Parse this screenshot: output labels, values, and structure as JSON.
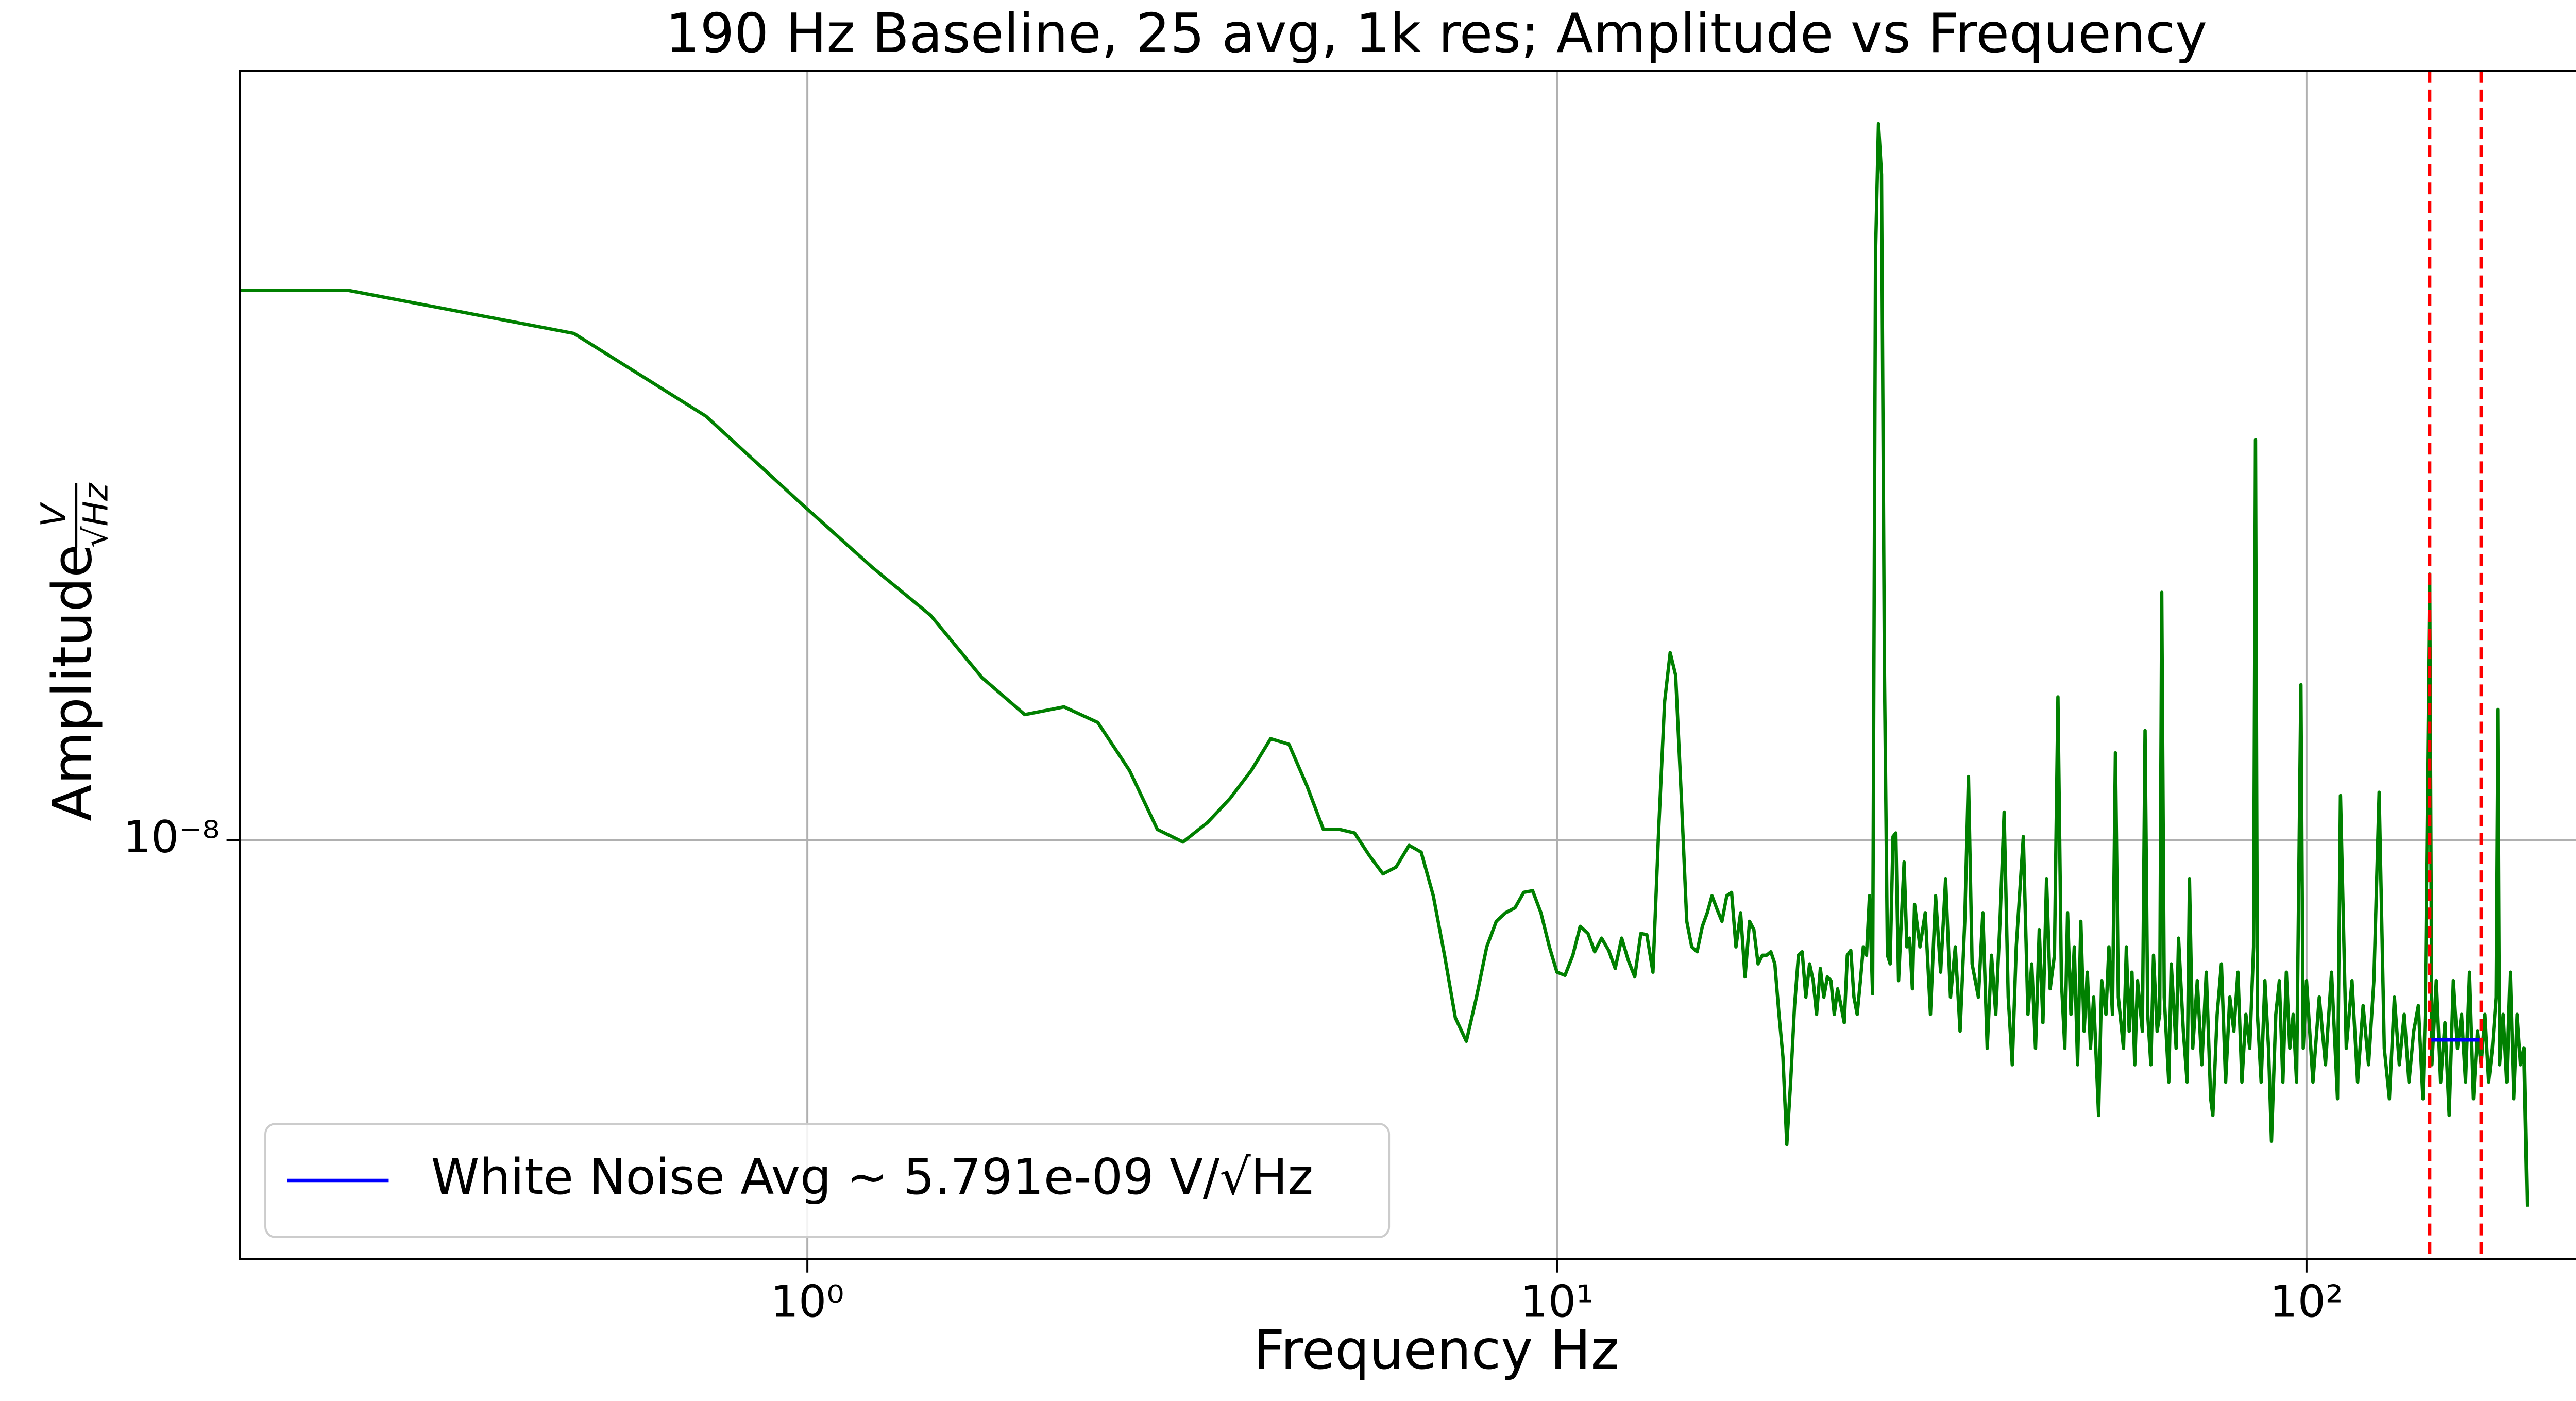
{
  "chart_data": {
    "type": "line",
    "title": "190 Hz Baseline, 25 avg, 1k res; Amplitude vs Frequency",
    "xlabel": "Frequency Hz",
    "ylabel": "Amplitude",
    "ylabel_fraction": {
      "numerator": "V",
      "denominator": "√Hz"
    },
    "xscale": "log",
    "yscale": "log",
    "grid": true,
    "legend_position": "lower left",
    "xlim": [
      0.175,
      271
    ],
    "ylim": [
      3.18e-09,
      8.2e-08
    ],
    "xticks": [
      {
        "value": 1,
        "label": "10⁰"
      },
      {
        "value": 10,
        "label": "10¹"
      },
      {
        "value": 100,
        "label": "10²"
      }
    ],
    "yticks": [
      {
        "value": 1e-08,
        "label": "10⁻⁸"
      }
    ],
    "vlines": [
      146,
      171
    ],
    "vline_color": "#ff0000",
    "series": [
      {
        "color": "#008000",
        "x": [
          0.122,
          0.244,
          0.488,
          0.732,
          0.977,
          1.22,
          1.46,
          1.71,
          1.95,
          2.2,
          2.44,
          2.69,
          2.93,
          3.17,
          3.42,
          3.66,
          3.91,
          4.15,
          4.39,
          4.64,
          4.88,
          5.13,
          5.37,
          5.62,
          5.86,
          6.1,
          6.35,
          6.59,
          6.84,
          7.08,
          7.32,
          7.57,
          7.81,
          8.06,
          8.3,
          8.54,
          8.79,
          9.03,
          9.28,
          9.52,
          9.77,
          10,
          10.25,
          10.5,
          10.74,
          11,
          11.23,
          11.47,
          11.72,
          11.96,
          12.2,
          12.45,
          12.7,
          12.94,
          13.18,
          13.43,
          13.67,
          13.92,
          14.16,
          14.4,
          14.65,
          14.9,
          15.13,
          15.38,
          15.63,
          15.87,
          16.1,
          16.36,
          16.6,
          16.85,
          17.1,
          17.33,
          17.58,
          17.82,
          18.07,
          18.31,
          18.55,
          18.8,
          19.04,
          19.29,
          19.53,
          19.78,
          20.02,
          20.26,
          20.5,
          20.75,
          21,
          21.24,
          21.48,
          21.73,
          21.97,
          22.2,
          22.46,
          22.7,
          22.95,
          23.2,
          23.44,
          23.68,
          23.93,
          24.17,
          24.4,
          24.66,
          24.9,
          25.15,
          25.4,
          25.63,
          25.88,
          26.12,
          26.37,
          26.61,
          26.85,
          27.1,
          27.35,
          27.6,
          27.83,
          28.08,
          28.32,
          28.56,
          28.8,
          29.05,
          29.3,
          29.54,
          29.8,
          30,
          30.5,
          31,
          31.5,
          32,
          32.5,
          33,
          33.5,
          34,
          34.5,
          35,
          35.4,
          35.8,
          36.5,
          37,
          37.5,
          38,
          38.5,
          39,
          39.5,
          40,
          40.5,
          41,
          41.9,
          42.5,
          43,
          43.5,
          44,
          44.5,
          45,
          45.5,
          46.1,
          46.6,
          47.1,
          47.6,
          48,
          48.5,
          49,
          49.5,
          50,
          50.5,
          51,
          51.5,
          52,
          52.8,
          53.3,
          54,
          54.5,
          55.1,
          55.6,
          56.1,
          57,
          57.5,
          58,
          58.5,
          59,
          59.5,
          60.4,
          60.9,
          61.4,
          62,
          62.5,
          63.2,
          63.7,
          64.1,
          64.6,
          65.5,
          66,
          67,
          67.5,
          68.5,
          69.3,
          69.8,
          70.5,
          71.5,
          72.5,
          73.5,
          74.5,
          75,
          76,
          77,
          78,
          79,
          80,
          81,
          82,
          83,
          84,
          85,
          85.5,
          86,
          87,
          88,
          89,
          89.8,
          91,
          92,
          93,
          94,
          95,
          96,
          97,
          98.3,
          99,
          100,
          102,
          104,
          106,
          108,
          110,
          111,
          113,
          115,
          117,
          119,
          121,
          123,
          125,
          127,
          129,
          131,
          133,
          135,
          137,
          139,
          141,
          143,
          144,
          146,
          147,
          149,
          151,
          153,
          155,
          157,
          159,
          161,
          163,
          165,
          167,
          169,
          171,
          173,
          175,
          177,
          179,
          180,
          181,
          183,
          185,
          187,
          189,
          191,
          193,
          195,
          197
        ],
        "values": [
          4.5e-08,
          4.5e-08,
          4e-08,
          3.19e-08,
          2.52e-08,
          2.11e-08,
          1.85e-08,
          1.56e-08,
          1.41e-08,
          1.44e-08,
          1.38e-08,
          1.21e-08,
          1.03e-08,
          9.95e-09,
          1.05e-08,
          1.12e-08,
          1.21e-08,
          1.32e-08,
          1.3e-08,
          1.16e-08,
          1.03e-08,
          1.03e-08,
          1.02e-08,
          9.59e-09,
          9.12e-09,
          9.29e-09,
          9.86e-09,
          9.68e-09,
          8.59e-09,
          7.3e-09,
          6.15e-09,
          5.77e-09,
          6.51e-09,
          7.47e-09,
          8.01e-09,
          8.2e-09,
          8.31e-09,
          8.67e-09,
          8.71e-09,
          8.2e-09,
          7.47e-09,
          6.97e-09,
          6.91e-09,
          7.3e-09,
          7.9e-09,
          7.75e-09,
          7.37e-09,
          7.65e-09,
          7.4e-09,
          7.04e-09,
          7.65e-09,
          7.2e-09,
          6.88e-09,
          7.75e-09,
          7.72e-09,
          6.97e-09,
          1.03e-08,
          1.46e-08,
          1.67e-08,
          1.57e-08,
          1.13e-08,
          8.01e-09,
          7.47e-09,
          7.37e-09,
          7.9e-09,
          8.2e-09,
          8.59e-09,
          8.27e-09,
          8.01e-09,
          8.59e-09,
          8.67e-09,
          7.47e-09,
          8.2e-09,
          6.88e-09,
          8.01e-09,
          7.83e-09,
          7.13e-09,
          7.3e-09,
          7.3e-09,
          7.37e-09,
          7.13e-09,
          6.21e-09,
          5.53e-09,
          4.35e-09,
          5.16e-09,
          6.36e-09,
          7.3e-09,
          7.37e-09,
          6.51e-09,
          7.13e-09,
          6.81e-09,
          6.21e-09,
          7.04e-09,
          6.51e-09,
          6.88e-09,
          6.81e-09,
          6.21e-09,
          6.66e-09,
          6.36e-09,
          6.07e-09,
          7.3e-09,
          7.4e-09,
          6.51e-09,
          6.21e-09,
          6.81e-09,
          7.47e-09,
          7.3e-09,
          8.59e-09,
          6.57e-09,
          4.98e-08,
          7.1e-08,
          6.18e-08,
          1.57e-08,
          7.3e-09,
          7.13e-09,
          1.01e-08,
          1.02e-08,
          6.81e-09,
          8.01e-09,
          9.42e-09,
          7.47e-09,
          7.65e-09,
          6.66e-09,
          8.39e-09,
          7.47e-09,
          8.2e-09,
          6.21e-09,
          8.59e-09,
          6.97e-09,
          8.99e-09,
          6.51e-09,
          7.47e-09,
          5.93e-09,
          8.01e-09,
          1.19e-08,
          7.13e-09,
          6.51e-09,
          8.2e-09,
          5.66e-09,
          7.3e-09,
          6.21e-09,
          8.01e-09,
          1.08e-08,
          6.51e-09,
          5.41e-09,
          7.47e-09,
          1.01e-08,
          6.21e-09,
          7.13e-09,
          5.66e-09,
          7.83e-09,
          6.07e-09,
          8.99e-09,
          6.66e-09,
          7.3e-09,
          1.48e-08,
          6.81e-09,
          5.66e-09,
          8.2e-09,
          6.21e-09,
          7.47e-09,
          5.41e-09,
          8.01e-09,
          5.93e-09,
          6.97e-09,
          5.66e-09,
          6.51e-09,
          4.71e-09,
          6.81e-09,
          6.21e-09,
          7.47e-09,
          6.21e-09,
          1.27e-08,
          6.51e-09,
          5.66e-09,
          7.47e-09,
          5.93e-09,
          6.97e-09,
          5.41e-09,
          6.81e-09,
          5.93e-09,
          1.35e-08,
          6.21e-09,
          5.41e-09,
          7.3e-09,
          5.93e-09,
          6.21e-09,
          1.97e-08,
          6.51e-09,
          5.16e-09,
          7.13e-09,
          5.66e-09,
          7.65e-09,
          5.93e-09,
          5.16e-09,
          8.99e-09,
          5.66e-09,
          6.81e-09,
          5.41e-09,
          6.97e-09,
          4.93e-09,
          4.71e-09,
          6.21e-09,
          7.13e-09,
          5.16e-09,
          6.51e-09,
          5.93e-09,
          6.97e-09,
          5.16e-09,
          6.21e-09,
          5.66e-09,
          7.47e-09,
          2.99e-08,
          6.21e-09,
          5.16e-09,
          6.81e-09,
          5.66e-09,
          4.39e-09,
          6.21e-09,
          6.81e-09,
          5.16e-09,
          6.97e-09,
          5.66e-09,
          6.21e-09,
          5.16e-09,
          1.53e-08,
          5.66e-09,
          6.81e-09,
          5.16e-09,
          6.51e-09,
          5.41e-09,
          6.97e-09,
          4.93e-09,
          1.13e-08,
          5.66e-09,
          6.81e-09,
          5.16e-09,
          6.36e-09,
          5.41e-09,
          6.81e-09,
          1.14e-08,
          5.66e-09,
          4.93e-09,
          6.51e-09,
          5.41e-09,
          6.21e-09,
          5.16e-09,
          5.93e-09,
          6.36e-09,
          4.93e-09,
          6.21e-09,
          2.07e-08,
          5.41e-09,
          6.81e-09,
          5.16e-09,
          6.07e-09,
          4.71e-09,
          6.81e-09,
          5.66e-09,
          6.21e-09,
          5.16e-09,
          6.97e-09,
          4.93e-09,
          5.93e-09,
          5.41e-09,
          6.21e-09,
          5.16e-09,
          5.66e-09,
          6.51e-09,
          1.43e-08,
          5.41e-09,
          6.21e-09,
          5.16e-09,
          6.97e-09,
          4.93e-09,
          6.21e-09,
          5.41e-09,
          5.66e-09,
          3.67e-09
        ]
      },
      {
        "name": "White Noise Avg ~ 5.791e-09 V/√Hz",
        "color": "#0000ff",
        "x": [
          146,
          171
        ],
        "values": [
          5.791e-09,
          5.791e-09
        ]
      }
    ]
  }
}
